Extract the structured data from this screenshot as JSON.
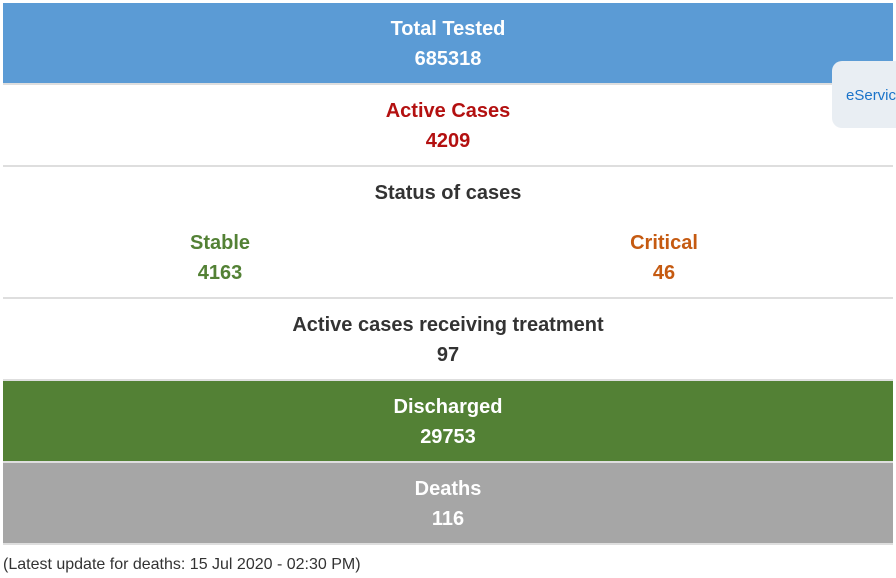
{
  "total_tested": {
    "label": "Total Tested",
    "value": "685318"
  },
  "active_cases": {
    "label": "Active Cases",
    "value": "4209"
  },
  "status": {
    "title": "Status of cases",
    "stable": {
      "label": "Stable",
      "value": "4163"
    },
    "critical": {
      "label": "Critical",
      "value": "46"
    }
  },
  "treatment": {
    "label": "Active cases receiving treatment",
    "value": "97"
  },
  "discharged": {
    "label": "Discharged",
    "value": "29753"
  },
  "deaths": {
    "label": "Deaths",
    "value": "116"
  },
  "footnote": "(Latest update for deaths: 15 Jul 2020 - 02:30 PM)",
  "eservice_tab": "eService",
  "colors": {
    "tested_bg": "#5b9bd5",
    "active_text": "#b31010",
    "stable_text": "#538135",
    "critical_text": "#c55a11",
    "discharged_bg": "#538135",
    "deaths_bg": "#a6a6a6"
  }
}
